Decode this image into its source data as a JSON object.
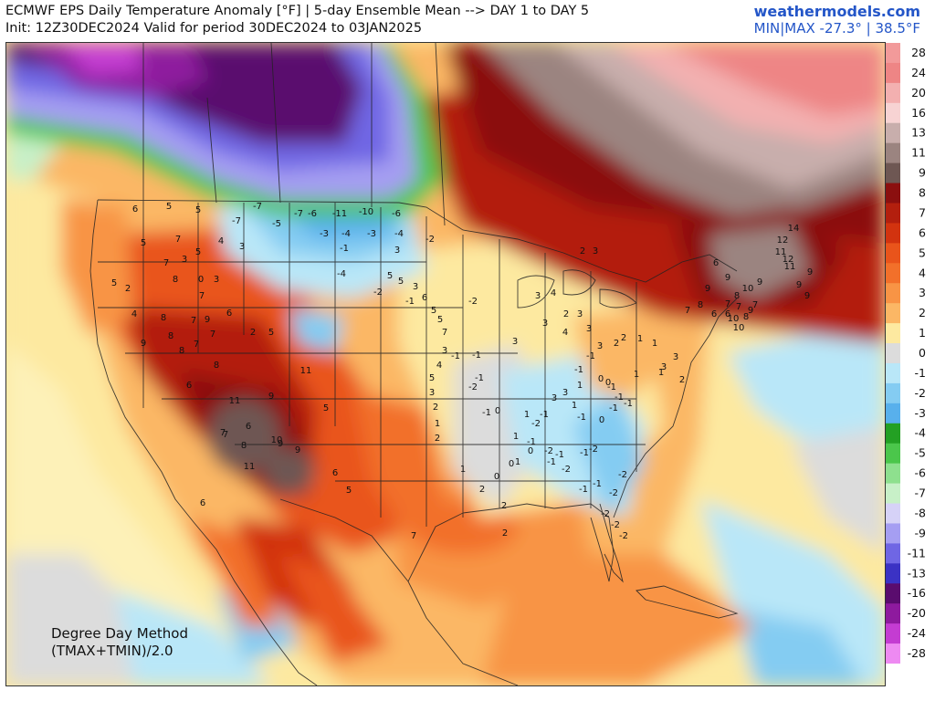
{
  "header": {
    "title": "ECMWF EPS Daily Temperature Anomaly [°F] | 5-day Ensemble Mean --> DAY 1 to DAY 5",
    "subtitle": "Init: 12Z30DEC2024 Valid for period 30DEC2024 to 03JAN2025",
    "site": "weathermodels.com",
    "minmax": "MIN|MAX -27.3° | 38.5°F"
  },
  "footnote": {
    "line1": "Degree Day Method",
    "line2": "(TMAX+TMIN)/2.0"
  },
  "legend": [
    {
      "label": "28",
      "color": "#f29a9a"
    },
    {
      "label": "24",
      "color": "#ee8585"
    },
    {
      "label": "20",
      "color": "#f3b0b0"
    },
    {
      "label": "16",
      "color": "#f7d3d3"
    },
    {
      "label": "13",
      "color": "#c8aeac"
    },
    {
      "label": "11",
      "color": "#9b8480"
    },
    {
      "label": "9",
      "color": "#6e5753"
    },
    {
      "label": "8",
      "color": "#8b0f0f"
    },
    {
      "label": "7",
      "color": "#b31f0e"
    },
    {
      "label": "6",
      "color": "#d2330f"
    },
    {
      "label": "5",
      "color": "#e9541b"
    },
    {
      "label": "4",
      "color": "#f2702a"
    },
    {
      "label": "3",
      "color": "#f89445"
    },
    {
      "label": "2",
      "color": "#fbb765"
    },
    {
      "label": "1",
      "color": "#fde9a0"
    },
    {
      "label": "0",
      "color": "#dcdcdc"
    },
    {
      "label": "-1",
      "color": "#b9e7f8"
    },
    {
      "label": "-2",
      "color": "#84ccf2"
    },
    {
      "label": "-3",
      "color": "#58b0ec"
    },
    {
      "label": "-4",
      "color": "#23a023"
    },
    {
      "label": "-5",
      "color": "#4bc64b"
    },
    {
      "label": "-6",
      "color": "#8ee08e"
    },
    {
      "label": "-7",
      "color": "#c8f0c8"
    },
    {
      "label": "-8",
      "color": "#d6d2f7"
    },
    {
      "label": "-9",
      "color": "#a59ef2"
    },
    {
      "label": "-11",
      "color": "#6f66e4"
    },
    {
      "label": "-13",
      "color": "#3b32c4"
    },
    {
      "label": "-16",
      "color": "#5a0c6e"
    },
    {
      "label": "-20",
      "color": "#8e1a9e"
    },
    {
      "label": "-24",
      "color": "#c43cd2"
    },
    {
      "label": "-28",
      "color": "#ee8af2"
    }
  ],
  "stations": [
    {
      "v": "6"
    },
    {
      "v": "5"
    },
    {
      "v": "5"
    },
    {
      "v": "7"
    },
    {
      "v": "5"
    },
    {
      "v": "4"
    },
    {
      "v": "3"
    },
    {
      "v": "5"
    },
    {
      "v": "7"
    },
    {
      "v": "3"
    },
    {
      "v": "8"
    },
    {
      "v": "0"
    },
    {
      "v": "3"
    },
    {
      "v": "5"
    },
    {
      "v": "2"
    },
    {
      "v": "7"
    },
    {
      "v": "4"
    },
    {
      "v": "8"
    },
    {
      "v": "7"
    },
    {
      "v": "9"
    },
    {
      "v": "6"
    },
    {
      "v": "9"
    },
    {
      "v": "8"
    },
    {
      "v": "8"
    },
    {
      "v": "7"
    },
    {
      "v": "7"
    },
    {
      "v": "2"
    },
    {
      "v": "5"
    },
    {
      "v": "8"
    },
    {
      "v": "11"
    },
    {
      "v": "6"
    },
    {
      "v": "9"
    },
    {
      "v": "11"
    },
    {
      "v": "9"
    },
    {
      "v": "7"
    },
    {
      "v": "6"
    },
    {
      "v": "11"
    },
    {
      "v": "8"
    },
    {
      "v": "10"
    },
    {
      "v": "9"
    },
    {
      "v": "7"
    },
    {
      "v": "5"
    },
    {
      "v": "6"
    },
    {
      "v": "5"
    },
    {
      "v": "6"
    },
    {
      "v": "7"
    },
    {
      "v": "-7"
    },
    {
      "v": "-7"
    },
    {
      "v": "-5"
    },
    {
      "v": "-7"
    },
    {
      "v": "-6"
    },
    {
      "v": "-11"
    },
    {
      "v": "-10"
    },
    {
      "v": "-6"
    },
    {
      "v": "-3"
    },
    {
      "v": "-4"
    },
    {
      "v": "-3"
    },
    {
      "v": "-4"
    },
    {
      "v": "-1"
    },
    {
      "v": "-2"
    },
    {
      "v": "-4"
    },
    {
      "v": "-2"
    },
    {
      "v": "-1"
    },
    {
      "v": "-2"
    },
    {
      "v": "-1"
    },
    {
      "v": "-1"
    },
    {
      "v": "-1"
    },
    {
      "v": "-2"
    },
    {
      "v": "-1"
    },
    {
      "v": "0"
    },
    {
      "v": "3"
    },
    {
      "v": "3"
    },
    {
      "v": "4"
    },
    {
      "v": "2"
    },
    {
      "v": "3"
    },
    {
      "v": "3"
    },
    {
      "v": "2"
    },
    {
      "v": "4"
    },
    {
      "v": "3"
    },
    {
      "v": "3"
    },
    {
      "v": "3"
    },
    {
      "v": "2"
    },
    {
      "v": "2"
    },
    {
      "v": "1"
    },
    {
      "v": "1"
    },
    {
      "v": "3"
    },
    {
      "v": "3"
    },
    {
      "v": "2"
    },
    {
      "v": "1"
    },
    {
      "v": "1"
    },
    {
      "v": "-1"
    },
    {
      "v": "-1"
    },
    {
      "v": "0"
    },
    {
      "v": "0"
    },
    {
      "v": "-1"
    },
    {
      "v": "-1"
    },
    {
      "v": "-1"
    },
    {
      "v": "-1"
    },
    {
      "v": "0"
    },
    {
      "v": "-1"
    },
    {
      "v": "-1"
    },
    {
      "v": "-2"
    },
    {
      "v": "-1"
    },
    {
      "v": "-2"
    },
    {
      "v": "-1"
    },
    {
      "v": "-2"
    },
    {
      "v": "-1"
    },
    {
      "v": "-2"
    },
    {
      "v": "-2"
    },
    {
      "v": "-2"
    },
    {
      "v": "-1"
    },
    {
      "v": "-1"
    },
    {
      "v": "-2"
    },
    {
      "v": "-2"
    },
    {
      "v": "-2"
    },
    {
      "v": "0"
    },
    {
      "v": "0"
    },
    {
      "v": "1"
    },
    {
      "v": "2"
    },
    {
      "v": "2"
    },
    {
      "v": "2"
    },
    {
      "v": "1"
    },
    {
      "v": "0"
    },
    {
      "v": "1"
    },
    {
      "v": "1"
    },
    {
      "v": "-1"
    },
    {
      "v": "3"
    },
    {
      "v": "3"
    },
    {
      "v": "1"
    },
    {
      "v": "1"
    },
    {
      "v": "6"
    },
    {
      "v": "9"
    },
    {
      "v": "9"
    },
    {
      "v": "8"
    },
    {
      "v": "10"
    },
    {
      "v": "9"
    },
    {
      "v": "7"
    },
    {
      "v": "10"
    },
    {
      "v": "10"
    },
    {
      "v": "8"
    },
    {
      "v": "9"
    },
    {
      "v": "7"
    },
    {
      "v": "7"
    },
    {
      "v": "6"
    },
    {
      "v": "11"
    },
    {
      "v": "12"
    },
    {
      "v": "14"
    },
    {
      "v": "12"
    },
    {
      "v": "11"
    },
    {
      "v": "9"
    },
    {
      "v": "9"
    },
    {
      "v": "9"
    },
    {
      "v": "6"
    },
    {
      "v": "8"
    },
    {
      "v": "7"
    },
    {
      "v": "3"
    },
    {
      "v": "5"
    },
    {
      "v": "5"
    },
    {
      "v": "3"
    },
    {
      "v": "6"
    },
    {
      "v": "5"
    },
    {
      "v": "5"
    },
    {
      "v": "7"
    },
    {
      "v": "3"
    },
    {
      "v": "4"
    },
    {
      "v": "5"
    },
    {
      "v": "3"
    },
    {
      "v": "2"
    },
    {
      "v": "1"
    },
    {
      "v": "2"
    }
  ]
}
